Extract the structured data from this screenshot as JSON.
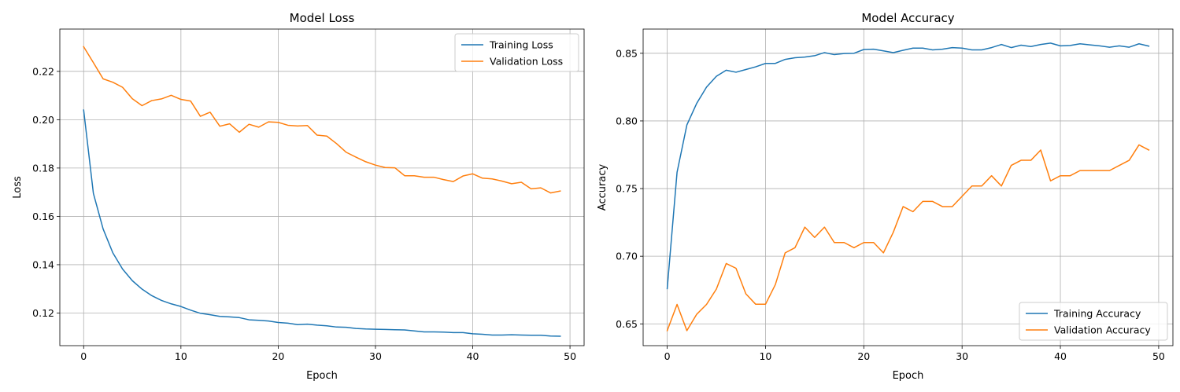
{
  "chart_data": [
    {
      "type": "line",
      "title": "Model Loss",
      "xlabel": "Epoch",
      "ylabel": "Loss",
      "xlim": [
        -2.45,
        51.45
      ],
      "ylim": [
        0.1065,
        0.2375
      ],
      "xticks": [
        0,
        10,
        20,
        30,
        40,
        50
      ],
      "yticks": [
        0.12,
        0.14,
        0.16,
        0.18,
        0.2,
        0.22
      ],
      "ytick_labels": [
        "0.12",
        "0.14",
        "0.16",
        "0.18",
        "0.20",
        "0.22"
      ],
      "grid": true,
      "legend_position": "top-right",
      "x": [
        0,
        1,
        2,
        3,
        4,
        5,
        6,
        7,
        8,
        9,
        10,
        11,
        12,
        13,
        14,
        15,
        16,
        17,
        18,
        19,
        20,
        21,
        22,
        23,
        24,
        25,
        26,
        27,
        28,
        29,
        30,
        31,
        32,
        33,
        34,
        35,
        36,
        37,
        38,
        39,
        40,
        41,
        42,
        43,
        44,
        45,
        46,
        47,
        48,
        49
      ],
      "series": [
        {
          "name": "Training Loss",
          "color": "#1f77b4",
          "values": [
            0.204,
            0.1695,
            0.1548,
            0.1449,
            0.1382,
            0.1334,
            0.1299,
            0.1272,
            0.1252,
            0.1238,
            0.1227,
            0.1212,
            0.1199,
            0.1193,
            0.1186,
            0.1184,
            0.1181,
            0.1172,
            0.117,
            0.1167,
            0.1161,
            0.1158,
            0.1152,
            0.1154,
            0.115,
            0.1147,
            0.1142,
            0.1141,
            0.1136,
            0.1134,
            0.1133,
            0.1132,
            0.1131,
            0.113,
            0.1126,
            0.1122,
            0.1122,
            0.1121,
            0.1119,
            0.1119,
            0.1114,
            0.1112,
            0.1109,
            0.1109,
            0.111,
            0.1109,
            0.1108,
            0.1108,
            0.1105,
            0.1104
          ]
        },
        {
          "name": "Validation Loss",
          "color": "#ff7f0e",
          "values": [
            0.2302,
            0.2236,
            0.2169,
            0.2155,
            0.2134,
            0.2087,
            0.2058,
            0.2079,
            0.2086,
            0.2101,
            0.2084,
            0.2077,
            0.2014,
            0.2031,
            0.1973,
            0.1983,
            0.1948,
            0.1981,
            0.1969,
            0.1991,
            0.1989,
            0.1977,
            0.1974,
            0.1976,
            0.1936,
            0.1932,
            0.1901,
            0.1865,
            0.1845,
            0.1826,
            0.1812,
            0.1802,
            0.1801,
            0.1768,
            0.1768,
            0.1762,
            0.1762,
            0.1752,
            0.1744,
            0.1767,
            0.1776,
            0.1758,
            0.1755,
            0.1746,
            0.1735,
            0.1741,
            0.1714,
            0.1718,
            0.1697,
            0.1705
          ]
        }
      ]
    },
    {
      "type": "line",
      "title": "Model Accuracy",
      "xlabel": "Epoch",
      "ylabel": "Accuracy",
      "xlim": [
        -2.45,
        51.45
      ],
      "ylim": [
        0.6339,
        0.8679
      ],
      "xticks": [
        0,
        10,
        20,
        30,
        40,
        50
      ],
      "yticks": [
        0.65,
        0.7,
        0.75,
        0.8,
        0.85
      ],
      "ytick_labels": [
        "0.65",
        "0.70",
        "0.75",
        "0.80",
        "0.85"
      ],
      "grid": true,
      "legend_position": "bottom-right",
      "x": [
        0,
        1,
        2,
        3,
        4,
        5,
        6,
        7,
        8,
        9,
        10,
        11,
        12,
        13,
        14,
        15,
        16,
        17,
        18,
        19,
        20,
        21,
        22,
        23,
        24,
        25,
        26,
        27,
        28,
        29,
        30,
        31,
        32,
        33,
        34,
        35,
        36,
        37,
        38,
        39,
        40,
        41,
        42,
        43,
        44,
        45,
        46,
        47,
        48,
        49
      ],
      "series": [
        {
          "name": "Training Accuracy",
          "color": "#1f77b4",
          "values": [
            0.676,
            0.762,
            0.797,
            0.813,
            0.825,
            0.833,
            0.8375,
            0.836,
            0.838,
            0.84,
            0.8425,
            0.8425,
            0.8455,
            0.8467,
            0.8472,
            0.8482,
            0.8505,
            0.849,
            0.8498,
            0.85,
            0.8528,
            0.853,
            0.8518,
            0.8505,
            0.8522,
            0.8538,
            0.8538,
            0.8525,
            0.853,
            0.8542,
            0.8538,
            0.8525,
            0.8525,
            0.8542,
            0.8565,
            0.8542,
            0.856,
            0.855,
            0.8565,
            0.8575,
            0.8555,
            0.8558,
            0.857,
            0.8562,
            0.8555,
            0.8545,
            0.8555,
            0.8545,
            0.857,
            0.8553
          ]
        },
        {
          "name": "Validation Accuracy",
          "color": "#ff7f0e",
          "values": [
            0.645,
            0.6644,
            0.645,
            0.6571,
            0.6644,
            0.6757,
            0.6946,
            0.6911,
            0.6722,
            0.6645,
            0.6645,
            0.679,
            0.7025,
            0.7063,
            0.7215,
            0.7139,
            0.7215,
            0.7101,
            0.7101,
            0.7063,
            0.7101,
            0.7101,
            0.7025,
            0.7177,
            0.7367,
            0.7329,
            0.7405,
            0.7405,
            0.7367,
            0.7367,
            0.7443,
            0.7519,
            0.7519,
            0.7595,
            0.7519,
            0.7671,
            0.7709,
            0.7709,
            0.7785,
            0.7557,
            0.7595,
            0.7595,
            0.7633,
            0.7633,
            0.7633,
            0.7633,
            0.7671,
            0.7709,
            0.7823,
            0.7785
          ]
        }
      ]
    }
  ]
}
